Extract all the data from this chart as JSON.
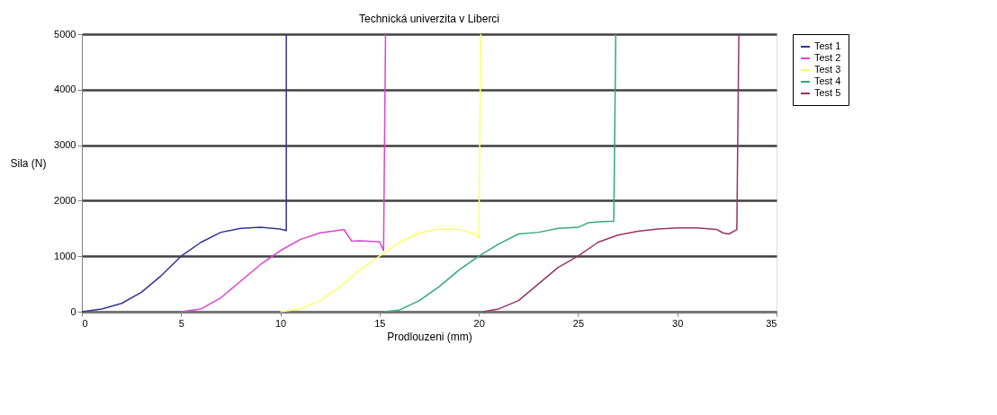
{
  "chart_data": {
    "type": "line",
    "title": "Technická univerzita v Liberci",
    "xlabel": "Prodlouzeni (mm)",
    "ylabel": "Sila (N)",
    "xlim": [
      0,
      35
    ],
    "xticks": [
      0,
      5,
      10,
      15,
      20,
      25,
      30,
      35
    ],
    "ylim": [
      0,
      5000
    ],
    "yticks": [
      0,
      1000,
      2000,
      3000,
      4000,
      5000
    ],
    "grid": "y",
    "legend": "right",
    "marker": "none",
    "line_style": "solid",
    "series": [
      {
        "name": "Test 1",
        "color": "#333399",
        "x": [
          0,
          1,
          2,
          3,
          4,
          5,
          6,
          7,
          8,
          9,
          10,
          10.3,
          10.3
        ],
        "values": [
          0,
          50,
          150,
          350,
          650,
          1000,
          1250,
          1430,
          1500,
          1520,
          1490,
          1460,
          5000
        ]
      },
      {
        "name": "Test 2",
        "color": "#dd44cc",
        "x": [
          5,
          6,
          7,
          8,
          9,
          10,
          11,
          12,
          13,
          13.2,
          13.6,
          14,
          15,
          15.2,
          15.3
        ],
        "values": [
          0,
          50,
          250,
          550,
          850,
          1100,
          1300,
          1420,
          1470,
          1480,
          1270,
          1280,
          1260,
          1100,
          5000
        ]
      },
      {
        "name": "Test 3",
        "color": "#ffff66",
        "x": [
          10,
          11,
          12,
          13,
          14,
          15,
          16,
          17,
          18,
          19,
          19.8,
          20,
          20.1
        ],
        "values": [
          0,
          50,
          200,
          450,
          750,
          1000,
          1250,
          1420,
          1490,
          1480,
          1400,
          1330,
          5000
        ]
      },
      {
        "name": "Test 4",
        "color": "#33aa77",
        "x": [
          15.2,
          16,
          17,
          18,
          19,
          20,
          21,
          22,
          23,
          24,
          25,
          25.5,
          26,
          26.8,
          26.9
        ],
        "values": [
          0,
          30,
          200,
          450,
          750,
          1000,
          1220,
          1400,
          1430,
          1500,
          1520,
          1600,
          1620,
          1630,
          5000
        ]
      },
      {
        "name": "Test 5",
        "color": "#993366",
        "x": [
          20.2,
          21,
          22,
          23,
          24,
          25,
          26,
          27,
          28,
          29,
          30,
          31,
          32,
          32.3,
          32.6,
          33,
          33.1
        ],
        "values": [
          0,
          50,
          200,
          500,
          800,
          1000,
          1250,
          1380,
          1450,
          1490,
          1510,
          1510,
          1480,
          1420,
          1400,
          1480,
          5000
        ]
      }
    ]
  }
}
